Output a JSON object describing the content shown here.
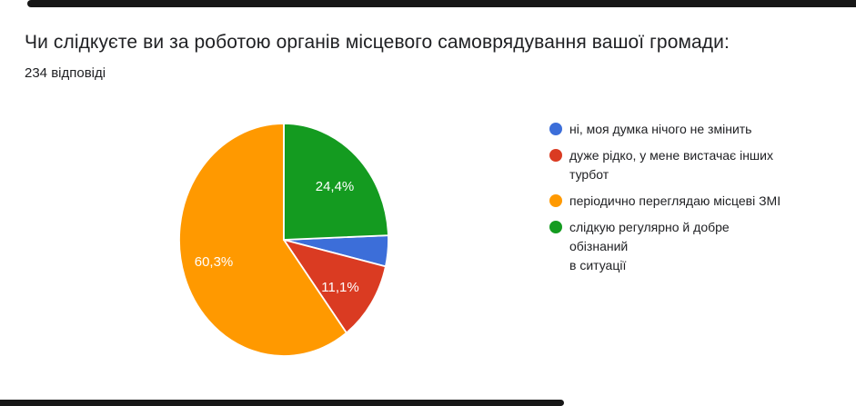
{
  "header": {
    "title": "Чи слідкуєте ви за роботою органів місцевого самоврядування вашої громади:",
    "responses_label": "234 відповіді"
  },
  "chart_data": {
    "type": "pie",
    "title": "Чи слідкуєте ви за роботою органів місцевого самоврядування вашої громади:",
    "total_responses": 234,
    "legend_position": "right",
    "start_angle_deg": 87.8,
    "slices": [
      {
        "label": "ні, моя думка нічого не змінить",
        "value_pct": 4.3,
        "pct_label": "",
        "color": "#3C6ED9"
      },
      {
        "label": "дуже рідко, у мене вистачає інших турбот",
        "value_pct": 11.1,
        "pct_label": "11,1%",
        "color": "#DA3B22"
      },
      {
        "label": "періодично переглядаю місцеві ЗМІ",
        "value_pct": 60.3,
        "pct_label": "60,3%",
        "color": "#FF9900"
      },
      {
        "label": "слідкую регулярно й добре обізнаний в ситуації",
        "value_pct": 24.4,
        "pct_label": "24,4%",
        "color": "#149B20"
      }
    ]
  },
  "legend": {
    "items": [
      {
        "label": "ні, моя думка нічого не змінить"
      },
      {
        "label": "дуже рідко, у мене вистачає інших\nтурбот"
      },
      {
        "label": "періодично переглядаю місцеві ЗМІ"
      },
      {
        "label": "слідкую регулярно й добре обізнаний\nв ситуації"
      }
    ]
  },
  "decor": {
    "edge_bar_color": "#171717"
  }
}
